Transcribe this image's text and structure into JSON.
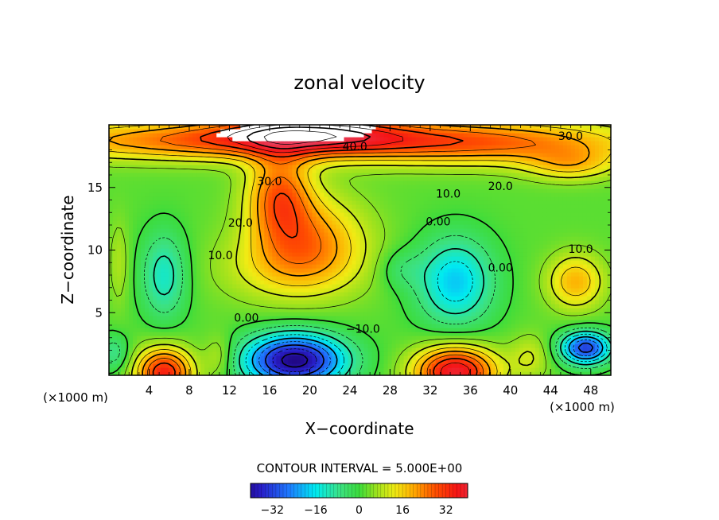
{
  "chart_data": {
    "type": "heatmap",
    "title": "zonal velocity",
    "xlabel": "X−coordinate",
    "ylabel": "Z−coordinate",
    "x_unit_left": "(×1000 m)",
    "x_unit_right": "(×1000 m)",
    "xlim": [
      0,
      50
    ],
    "ylim": [
      0,
      20
    ],
    "x_ticks": [
      4,
      8,
      12,
      16,
      20,
      24,
      28,
      32,
      36,
      40,
      44,
      48
    ],
    "y_ticks": [
      5,
      10,
      15
    ],
    "contour_interval_text": "CONTOUR INTERVAL = 5.000E+00",
    "colorbar": {
      "range": [
        -40,
        40
      ],
      "ticks": [
        -32,
        -16,
        0,
        16,
        32
      ],
      "tick_labels": [
        "−32",
        "−16",
        "0",
        "16",
        "32"
      ]
    },
    "contour_labels": [
      {
        "text": "40.0",
        "x": 24.5,
        "y": 18.3
      },
      {
        "text": "30.0",
        "x": 46.0,
        "y": 19.1
      },
      {
        "text": "30.0",
        "x": 16.0,
        "y": 15.5
      },
      {
        "text": "20.0",
        "x": 13.1,
        "y": 12.2
      },
      {
        "text": "20.0",
        "x": 39.0,
        "y": 15.1
      },
      {
        "text": "10.0",
        "x": 11.1,
        "y": 9.6
      },
      {
        "text": "10.0",
        "x": 33.8,
        "y": 14.5
      },
      {
        "text": "10.0",
        "x": 47.0,
        "y": 10.1
      },
      {
        "text": "0.00",
        "x": 13.7,
        "y": 4.6
      },
      {
        "text": "0.00",
        "x": 32.8,
        "y": 12.3
      },
      {
        "text": "0.00",
        "x": 39.0,
        "y": 8.6
      },
      {
        "text": "−10.0",
        "x": 25.3,
        "y": 3.7
      }
    ],
    "blobs": [
      {
        "x": 20,
        "y": 19.5,
        "sx": 9,
        "sy": 1.5,
        "v": 20
      },
      {
        "x": 12,
        "y": 18.8,
        "sx": 22,
        "sy": 1.6,
        "v": 24
      },
      {
        "x": 38,
        "y": 18.6,
        "sx": 16,
        "sy": 1.8,
        "v": 20
      },
      {
        "x": 46,
        "y": 16.8,
        "sx": 4.5,
        "sy": 1.3,
        "v": 12
      },
      {
        "x": 17,
        "y": 14.5,
        "sx": 3.2,
        "sy": 3.5,
        "v": 23
      },
      {
        "x": 20,
        "y": 11.0,
        "sx": 5.5,
        "sy": 3.5,
        "v": 18
      },
      {
        "x": 18,
        "y": 8.5,
        "sx": 7,
        "sy": 2.8,
        "v": 10
      },
      {
        "x": 5.5,
        "y": 8.0,
        "sx": 2.3,
        "sy": 3.5,
        "v": -15
      },
      {
        "x": 34.5,
        "y": 7.5,
        "sx": 3.8,
        "sy": 3.5,
        "v": -21
      },
      {
        "x": 29,
        "y": 8.5,
        "sx": 2.2,
        "sy": 1.6,
        "v": -6
      },
      {
        "x": 46.5,
        "y": 7.5,
        "sx": 2.8,
        "sy": 2.2,
        "v": 17
      },
      {
        "x": 18.5,
        "y": 1.2,
        "sx": 5,
        "sy": 2.1,
        "v": -45
      },
      {
        "x": 47.5,
        "y": 2.2,
        "sx": 2.5,
        "sy": 1.3,
        "v": -35
      },
      {
        "x": 5.5,
        "y": 0.2,
        "sx": 2.8,
        "sy": 2.0,
        "v": 33
      },
      {
        "x": 34.5,
        "y": 0.3,
        "sx": 4,
        "sy": 2.0,
        "v": 38
      },
      {
        "x": 1,
        "y": 9,
        "sx": 1.0,
        "sy": 3.5,
        "v": 6
      },
      {
        "x": 0.5,
        "y": 1.8,
        "sx": 1.5,
        "sy": 1.5,
        "v": -10
      },
      {
        "x": 11,
        "y": 1.5,
        "sx": 1.5,
        "sy": 1.8,
        "v": 8
      },
      {
        "x": 42,
        "y": 1.5,
        "sx": 2.0,
        "sy": 1.8,
        "v": 8
      }
    ],
    "background": {
      "value": 2
    },
    "white_cap": {
      "x": 18,
      "y": 19.8,
      "sx": 8.5,
      "sy": 1.2,
      "threshold": 40
    }
  }
}
